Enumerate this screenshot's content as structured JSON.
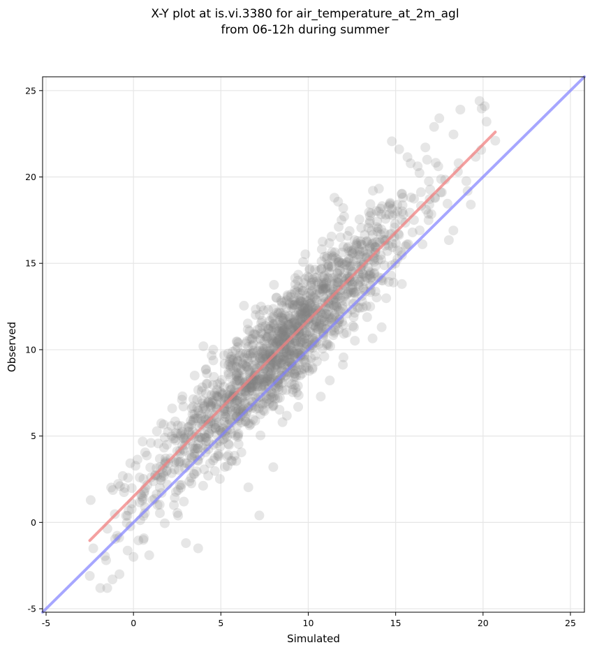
{
  "chart_data": {
    "type": "scatter",
    "title_lines": [
      "X-Y plot at is.vi.3380 for air_temperature_at_2m_agl",
      "from 06-12h during summer"
    ],
    "xlabel": "Simulated",
    "ylabel": "Observed",
    "xlim": [
      -5.2,
      25.8
    ],
    "ylim": [
      -5.2,
      25.8
    ],
    "xticks": [
      -5,
      0,
      5,
      10,
      15,
      20,
      25
    ],
    "yticks": [
      -5,
      0,
      5,
      10,
      15,
      20,
      25
    ],
    "grid": true,
    "point_color": "#808080",
    "point_opacity": 0.2,
    "regression_line": {
      "color": "#f08080",
      "x": [
        -2.5,
        20.7
      ],
      "y": [
        -1.05,
        22.6
      ]
    },
    "identity_line": {
      "color": "#8080ff",
      "x": [
        -5.2,
        25.8
      ],
      "y": [
        -5.2,
        25.8
      ]
    },
    "distribution": {
      "n_points": 1600,
      "slope": 1.02,
      "intercept": 1.5,
      "x_center": 8.5,
      "x_spread": 3.8,
      "residual_spread": 1.6,
      "x_min": -2.5,
      "x_max": 20.7
    },
    "notable_points": [
      {
        "x": 19.8,
        "y": 24.4
      },
      {
        "x": 18.7,
        "y": 23.9
      },
      {
        "x": 20.1,
        "y": 24.1
      },
      {
        "x": 17.5,
        "y": 23.4
      },
      {
        "x": 17.2,
        "y": 22.9
      },
      {
        "x": 20.2,
        "y": 23.2
      },
      {
        "x": 20.7,
        "y": 22.1
      },
      {
        "x": 15.2,
        "y": 21.6
      },
      {
        "x": 18.6,
        "y": 20.8
      },
      {
        "x": 16.8,
        "y": 21.0
      },
      {
        "x": 19.3,
        "y": 18.4
      },
      {
        "x": 18.3,
        "y": 16.9
      },
      {
        "x": 14.2,
        "y": 11.3
      },
      {
        "x": 11.5,
        "y": 18.8
      },
      {
        "x": 12.0,
        "y": 18.2
      },
      {
        "x": -2.5,
        "y": -3.1
      },
      {
        "x": -1.9,
        "y": -3.8
      },
      {
        "x": -1.5,
        "y": -3.8
      },
      {
        "x": -1.2,
        "y": -3.3
      },
      {
        "x": -0.8,
        "y": -3.0
      },
      {
        "x": -2.3,
        "y": -1.5
      },
      {
        "x": 0.0,
        "y": -2.0
      },
      {
        "x": 0.9,
        "y": -1.9
      },
      {
        "x": 3.0,
        "y": -1.2
      },
      {
        "x": 3.7,
        "y": -1.5
      },
      {
        "x": 7.2,
        "y": 0.4
      },
      {
        "x": 8.0,
        "y": 3.2
      },
      {
        "x": 1.0,
        "y": 4.6
      },
      {
        "x": 2.8,
        "y": 7.3
      },
      {
        "x": 7.3,
        "y": 12.5
      },
      {
        "x": 3.5,
        "y": 8.5
      },
      {
        "x": 4.0,
        "y": 10.2
      }
    ]
  }
}
